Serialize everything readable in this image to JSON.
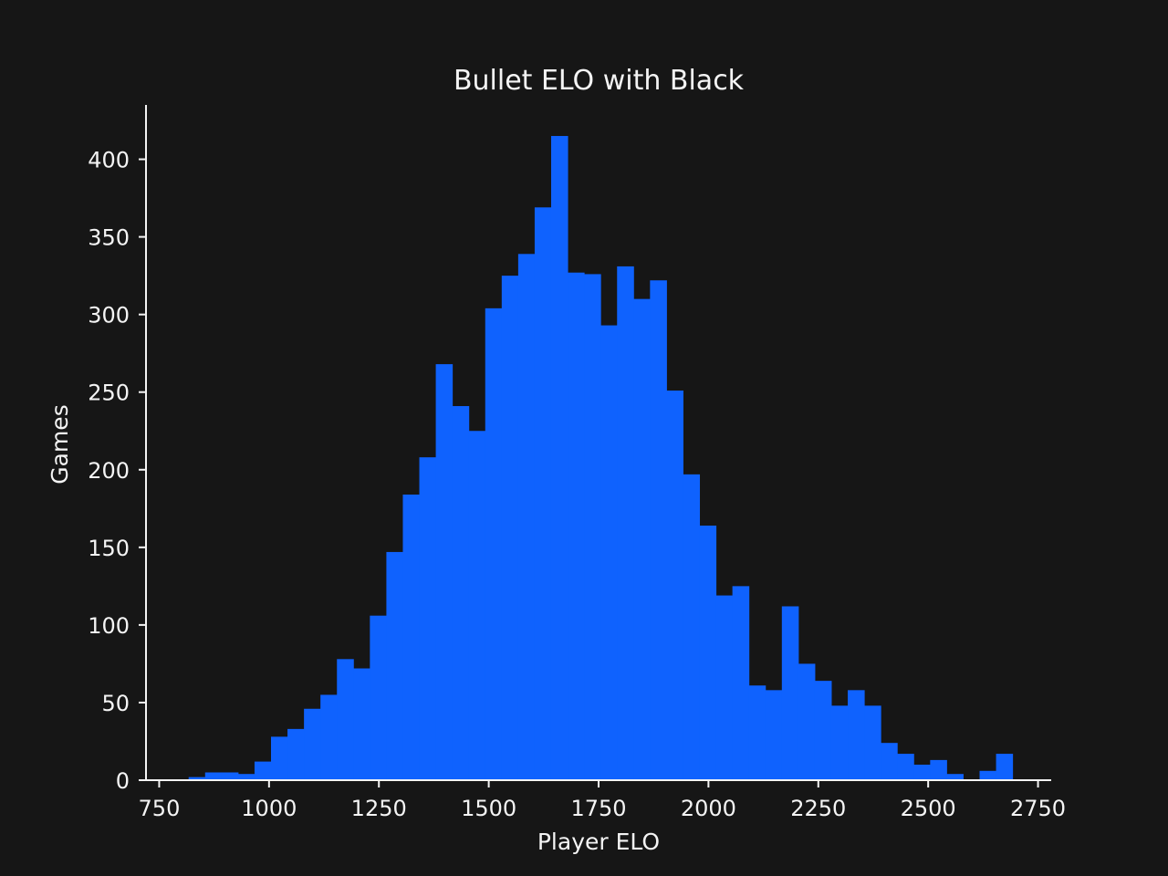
{
  "chart_data": {
    "type": "bar",
    "title": "Bullet ELO with Black",
    "xlabel": "Player ELO",
    "ylabel": "Games",
    "xlim": [
      720,
      2780
    ],
    "ylim": [
      0,
      435
    ],
    "x_ticks": [
      750,
      1000,
      1250,
      1500,
      1750,
      2000,
      2250,
      2500,
      2750
    ],
    "y_ticks": [
      0,
      50,
      100,
      150,
      200,
      250,
      300,
      350,
      400
    ],
    "grid": false,
    "legend": "none",
    "bar_color": "#0f62fe",
    "bin_width": 37.5,
    "bin_start": 817,
    "values": [
      2,
      5,
      5,
      4,
      12,
      28,
      33,
      46,
      55,
      78,
      72,
      106,
      147,
      184,
      208,
      268,
      241,
      225,
      304,
      325,
      339,
      369,
      415,
      327,
      326,
      293,
      331,
      310,
      322,
      251,
      197,
      164,
      119,
      125,
      61,
      58,
      112,
      75,
      64,
      48,
      58,
      48,
      24,
      17,
      10,
      13,
      4,
      0,
      6,
      17
    ]
  },
  "colors": {
    "background": "#161616",
    "text": "#f4f4f4",
    "bars": "#0f62fe"
  }
}
